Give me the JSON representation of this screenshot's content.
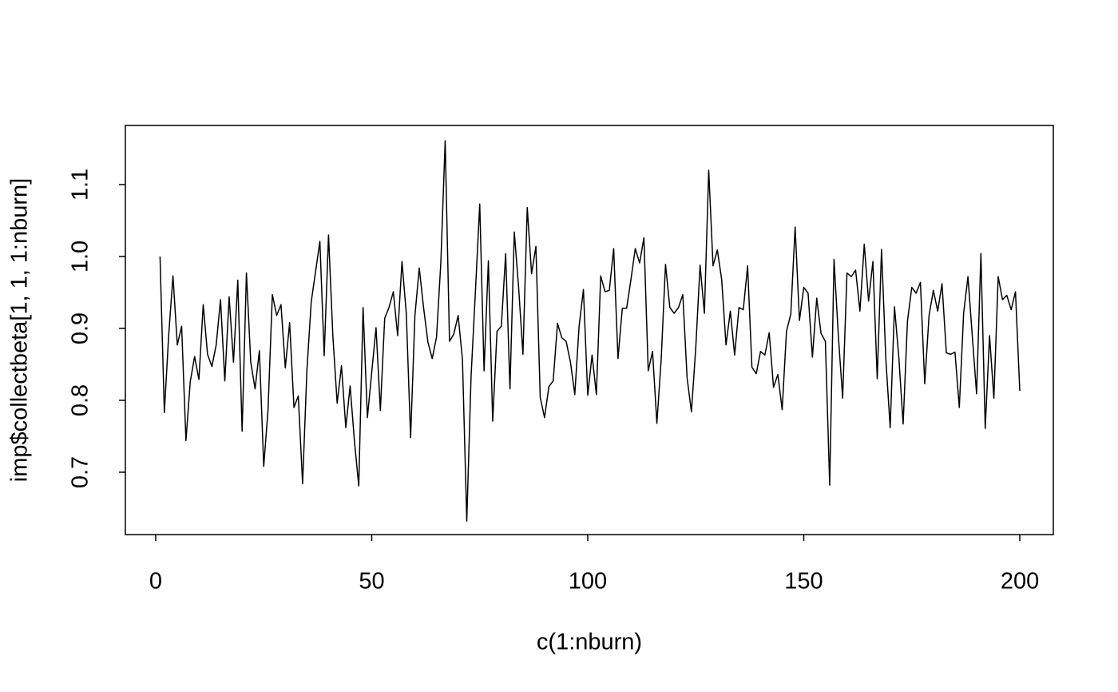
{
  "chart_data": {
    "type": "line",
    "xlabel": "c(1:nburn)",
    "ylabel": "imp$collectbeta[1, 1, 1:nburn]",
    "color": "#000000",
    "xlim": [
      -7.02,
      207.76
    ],
    "ylim": [
      0.6133,
      1.1822
    ],
    "xticks": [
      0,
      50,
      100,
      150,
      200
    ],
    "yticks": [
      0.7,
      0.8,
      0.9,
      {
        "value": 1,
        "label": "1.0"
      },
      1.1
    ],
    "x": [
      1,
      2,
      3,
      4,
      5,
      6,
      7,
      8,
      9,
      10,
      11,
      12,
      13,
      14,
      15,
      16,
      17,
      18,
      19,
      20,
      21,
      22,
      23,
      24,
      25,
      26,
      27,
      28,
      29,
      30,
      31,
      32,
      33,
      34,
      35,
      36,
      37,
      38,
      39,
      40,
      41,
      42,
      43,
      44,
      45,
      46,
      47,
      48,
      49,
      50,
      51,
      52,
      53,
      54,
      55,
      56,
      57,
      58,
      59,
      60,
      61,
      62,
      63,
      64,
      65,
      66,
      67,
      68,
      69,
      70,
      71,
      72,
      73,
      74,
      75,
      76,
      77,
      78,
      79,
      80,
      81,
      82,
      83,
      84,
      85,
      86,
      87,
      88,
      89,
      90,
      91,
      92,
      93,
      94,
      95,
      96,
      97,
      98,
      99,
      100,
      101,
      102,
      103,
      104,
      105,
      106,
      107,
      108,
      109,
      110,
      111,
      112,
      113,
      114,
      115,
      116,
      117,
      118,
      119,
      120,
      121,
      122,
      123,
      124,
      125,
      126,
      127,
      128,
      129,
      130,
      131,
      132,
      133,
      134,
      135,
      136,
      137,
      138,
      139,
      140,
      141,
      142,
      143,
      144,
      145,
      146,
      147,
      148,
      149,
      150,
      151,
      152,
      153,
      154,
      155,
      156,
      157,
      158,
      159,
      160,
      161,
      162,
      163,
      164,
      165,
      166,
      167,
      168,
      169,
      170,
      171,
      172,
      173,
      174,
      175,
      176,
      177,
      178,
      179,
      180,
      181,
      182,
      183,
      184,
      185,
      186,
      187,
      188,
      189,
      190,
      191,
      192,
      193,
      194,
      195,
      196,
      197,
      198,
      199,
      200
    ],
    "values": [
      1.0,
      0.783,
      0.89,
      0.973,
      0.877,
      0.903,
      0.744,
      0.826,
      0.861,
      0.829,
      0.933,
      0.864,
      0.847,
      0.877,
      0.94,
      0.827,
      0.944,
      0.853,
      0.967,
      0.757,
      0.977,
      0.853,
      0.816,
      0.869,
      0.708,
      0.787,
      0.947,
      0.918,
      0.933,
      0.845,
      0.908,
      0.79,
      0.806,
      0.684,
      0.842,
      0.937,
      0.979,
      1.021,
      0.862,
      1.03,
      0.89,
      0.796,
      0.848,
      0.762,
      0.82,
      0.743,
      0.681,
      0.929,
      0.776,
      0.839,
      0.901,
      0.786,
      0.914,
      0.929,
      0.951,
      0.89,
      0.993,
      0.921,
      0.748,
      0.918,
      0.984,
      0.929,
      0.881,
      0.858,
      0.888,
      0.992,
      1.161,
      0.882,
      0.892,
      0.918,
      0.857,
      0.632,
      0.834,
      0.951,
      1.073,
      0.841,
      0.994,
      0.771,
      0.896,
      0.903,
      1.004,
      0.816,
      1.034,
      0.957,
      0.864,
      1.068,
      0.976,
      1.014,
      0.804,
      0.776,
      0.819,
      0.827,
      0.907,
      0.887,
      0.882,
      0.853,
      0.808,
      0.903,
      0.954,
      0.807,
      0.863,
      0.808,
      0.973,
      0.951,
      0.953,
      1.011,
      0.858,
      0.928,
      0.928,
      0.968,
      1.011,
      0.991,
      1.026,
      0.841,
      0.868,
      0.768,
      0.857,
      0.989,
      0.929,
      0.921,
      0.929,
      0.947,
      0.831,
      0.784,
      0.873,
      0.988,
      0.921,
      1.12,
      0.987,
      1.009,
      0.968,
      0.877,
      0.924,
      0.863,
      0.929,
      0.926,
      0.987,
      0.846,
      0.837,
      0.868,
      0.863,
      0.894,
      0.818,
      0.836,
      0.787,
      0.896,
      0.92,
      1.041,
      0.911,
      0.957,
      0.949,
      0.86,
      0.942,
      0.893,
      0.882,
      0.682,
      0.996,
      0.89,
      0.803,
      0.977,
      0.972,
      0.981,
      0.924,
      1.017,
      0.938,
      0.993,
      0.83,
      1.01,
      0.857,
      0.762,
      0.93,
      0.86,
      0.767,
      0.91,
      0.957,
      0.949,
      0.964,
      0.823,
      0.918,
      0.953,
      0.924,
      0.962,
      0.866,
      0.864,
      0.867,
      0.79,
      0.921,
      0.972,
      0.89,
      0.809,
      1.004,
      0.761,
      0.89,
      0.803,
      0.972,
      0.94,
      0.946,
      0.926,
      0.951,
      0.813
    ]
  }
}
